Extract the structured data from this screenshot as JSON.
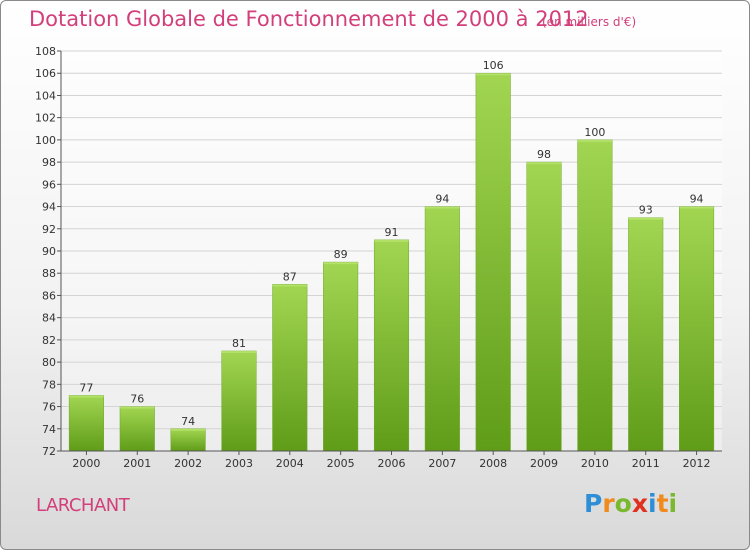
{
  "chart_data": {
    "type": "bar",
    "title": "Dotation Globale de Fonctionnement de 2000 à 2012",
    "subtitle": "(en milliers d'€)",
    "categories": [
      "2000",
      "2001",
      "2002",
      "2003",
      "2004",
      "2005",
      "2006",
      "2007",
      "2008",
      "2009",
      "2010",
      "2011",
      "2012"
    ],
    "values": [
      77,
      76,
      74,
      81,
      87,
      89,
      91,
      94,
      106,
      98,
      100,
      93,
      94
    ],
    "ylim": [
      72,
      108
    ],
    "ytick_step": 2,
    "grid": true,
    "bar_color": "#8cc63f",
    "xlabel": "",
    "ylabel": ""
  },
  "footer": {
    "commune": "LARCHANT",
    "logo_letters": [
      "P",
      "r",
      "o",
      "x",
      "i",
      "t",
      "i"
    ],
    "logo_colors": [
      "#2f8fd6",
      "#f18a1c",
      "#7ab82e",
      "#e0301e",
      "#2f8fd6",
      "#f18a1c",
      "#7ab82e"
    ]
  }
}
